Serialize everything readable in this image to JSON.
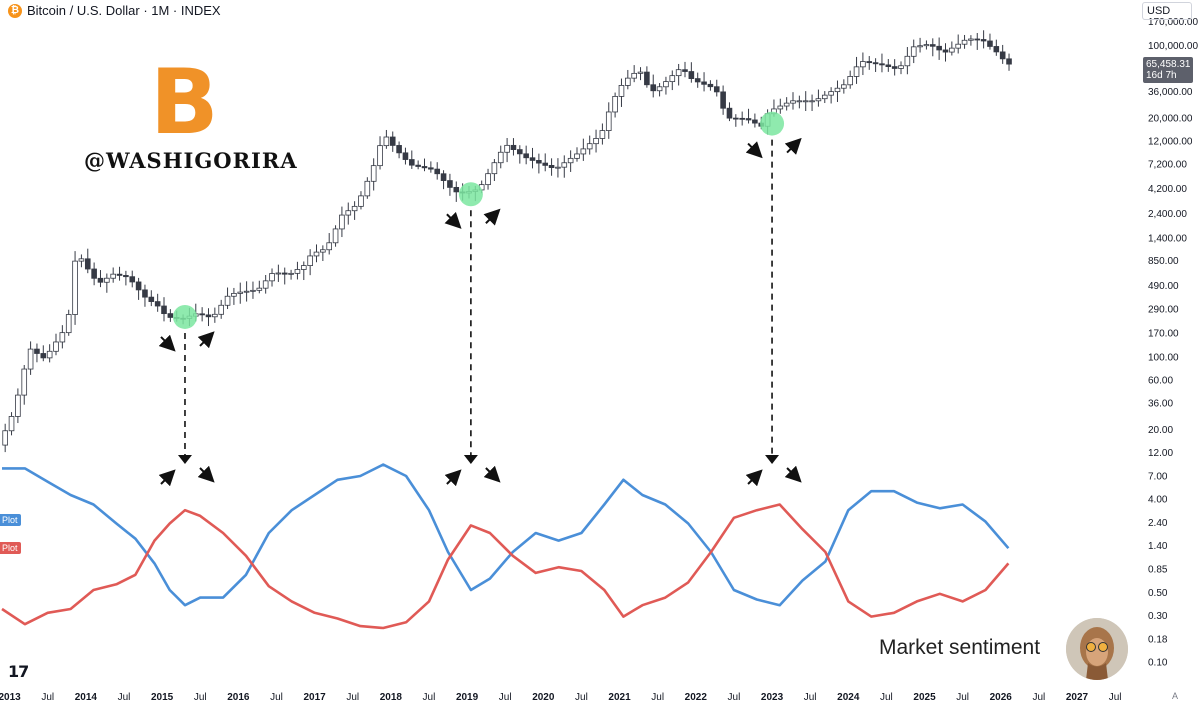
{
  "header": {
    "title": "Bitcoin / U.S. Dollar · 1M · INDEX",
    "btc_icon_glyph": "₿",
    "currency": "USD"
  },
  "price_label": {
    "value": "65,458.31",
    "countdown": "16d 7h"
  },
  "watermark": "@WASHIGORIRA",
  "logo_glyph": "B",
  "caption": "Market sentiment",
  "plot_labels": [
    {
      "text": "Plot",
      "color": "#4a8fd8"
    },
    {
      "text": "Plot",
      "color": "#e05a56"
    }
  ],
  "tv_logo": "17",
  "auto_label": "A",
  "colors": {
    "blue_line": "#4a8fd8",
    "red_line": "#e05a56",
    "green_marker": "#7be6a0",
    "candle_up": "#ffffff",
    "candle_down": "#363a45"
  },
  "chart_data": [
    {
      "type": "candlestick",
      "title": "Bitcoin / U.S. Dollar · 1M · INDEX",
      "y_scale": "log",
      "ylim": [
        14,
        180000
      ],
      "y_ticks": [
        "170,000.00",
        "100,000.00",
        "60,000.00",
        "36,000.00",
        "20,000.00",
        "12,000.00",
        "7,200.00",
        "4,200.00",
        "2,400.00",
        "1,400.00",
        "850.00",
        "490.00",
        "290.00",
        "170.00",
        "100.00",
        "60.00",
        "36.00",
        "20.00"
      ],
      "y_tick_values": [
        170000,
        100000,
        60000,
        36000,
        20000,
        12000,
        7200,
        4200,
        2400,
        1400,
        850,
        490,
        290,
        170,
        100,
        60,
        36,
        20
      ],
      "x_ticks": [
        "2013",
        "Jul",
        "2014",
        "Jul",
        "2015",
        "Jul",
        "2016",
        "Jul",
        "2017",
        "Jul",
        "2018",
        "Jul",
        "2019",
        "Jul",
        "2020",
        "Jul",
        "2021",
        "Jul",
        "2022",
        "Jul",
        "2023",
        "Jul",
        "2024",
        "Jul",
        "2025",
        "Jul",
        "2026",
        "Jul",
        "2027",
        "Jul"
      ],
      "x_tick_dates": [
        2013.0,
        2013.5,
        2014.0,
        2014.5,
        2015.0,
        2015.5,
        2016.0,
        2016.5,
        2017.0,
        2017.5,
        2018.0,
        2018.5,
        2019.0,
        2019.5,
        2020.0,
        2020.5,
        2021.0,
        2021.5,
        2022.0,
        2022.5,
        2023.0,
        2023.5,
        2024.0,
        2024.5,
        2025.0,
        2025.5,
        2026.0,
        2026.5,
        2027.0,
        2027.5
      ],
      "price_path": [
        [
          2012.9,
          14
        ],
        [
          2013.1,
          30
        ],
        [
          2013.3,
          120
        ],
        [
          2013.5,
          95
        ],
        [
          2013.8,
          200
        ],
        [
          2013.92,
          1100
        ],
        [
          2014.0,
          820
        ],
        [
          2014.2,
          500
        ],
        [
          2014.4,
          620
        ],
        [
          2014.6,
          580
        ],
        [
          2014.8,
          380
        ],
        [
          2015.0,
          300
        ],
        [
          2015.1,
          240
        ],
        [
          2015.3,
          230
        ],
        [
          2015.5,
          260
        ],
        [
          2015.7,
          235
        ],
        [
          2015.9,
          380
        ],
        [
          2016.0,
          410
        ],
        [
          2016.3,
          440
        ],
        [
          2016.5,
          650
        ],
        [
          2016.7,
          610
        ],
        [
          2016.9,
          750
        ],
        [
          2017.0,
          970
        ],
        [
          2017.2,
          1100
        ],
        [
          2017.4,
          2300
        ],
        [
          2017.6,
          2900
        ],
        [
          2017.8,
          6300
        ],
        [
          2017.95,
          14000
        ],
        [
          2018.1,
          10000
        ],
        [
          2018.3,
          7000
        ],
        [
          2018.6,
          6300
        ],
        [
          2018.85,
          4000
        ],
        [
          2018.95,
          3700
        ],
        [
          2019.2,
          4100
        ],
        [
          2019.45,
          8500
        ],
        [
          2019.55,
          11000
        ],
        [
          2019.8,
          8300
        ],
        [
          2020.0,
          7200
        ],
        [
          2020.2,
          6400
        ],
        [
          2020.5,
          9100
        ],
        [
          2020.8,
          13800
        ],
        [
          2020.95,
          29000
        ],
        [
          2021.1,
          45000
        ],
        [
          2021.3,
          58000
        ],
        [
          2021.45,
          35000
        ],
        [
          2021.6,
          41000
        ],
        [
          2021.85,
          61000
        ],
        [
          2022.0,
          46000
        ],
        [
          2022.3,
          38000
        ],
        [
          2022.45,
          19800
        ],
        [
          2022.7,
          19500
        ],
        [
          2022.9,
          16500
        ],
        [
          2023.0,
          23000
        ],
        [
          2023.3,
          29000
        ],
        [
          2023.6,
          29000
        ],
        [
          2023.8,
          35000
        ],
        [
          2024.0,
          42000
        ],
        [
          2024.2,
          70000
        ],
        [
          2024.5,
          64000
        ],
        [
          2024.7,
          58000
        ],
        [
          2024.9,
          96000
        ],
        [
          2025.1,
          102000
        ],
        [
          2025.3,
          84000
        ],
        [
          2025.6,
          115000
        ],
        [
          2025.8,
          112000
        ],
        [
          2025.95,
          90000
        ],
        [
          2026.05,
          78000
        ],
        [
          2026.1,
          65458.31
        ]
      ]
    },
    {
      "type": "line",
      "ylim": [
        0,
        1
      ],
      "series": [
        {
          "name": "Plot",
          "color": "#4a8fd8",
          "values": [
            [
              2012.9,
              0.84
            ],
            [
              2013.2,
              0.84
            ],
            [
              2013.5,
              0.77
            ],
            [
              2013.8,
              0.7
            ],
            [
              2014.1,
              0.65
            ],
            [
              2014.4,
              0.55
            ],
            [
              2014.65,
              0.47
            ],
            [
              2014.9,
              0.34
            ],
            [
              2015.1,
              0.2
            ],
            [
              2015.3,
              0.12
            ],
            [
              2015.5,
              0.16
            ],
            [
              2015.8,
              0.16
            ],
            [
              2016.1,
              0.28
            ],
            [
              2016.4,
              0.5
            ],
            [
              2016.7,
              0.62
            ],
            [
              2017.0,
              0.7
            ],
            [
              2017.3,
              0.78
            ],
            [
              2017.6,
              0.8
            ],
            [
              2017.9,
              0.86
            ],
            [
              2018.2,
              0.8
            ],
            [
              2018.5,
              0.62
            ],
            [
              2018.75,
              0.4
            ],
            [
              2019.05,
              0.2
            ],
            [
              2019.3,
              0.26
            ],
            [
              2019.6,
              0.4
            ],
            [
              2019.9,
              0.5
            ],
            [
              2020.2,
              0.46
            ],
            [
              2020.5,
              0.5
            ],
            [
              2020.8,
              0.65
            ],
            [
              2021.05,
              0.78
            ],
            [
              2021.3,
              0.7
            ],
            [
              2021.6,
              0.65
            ],
            [
              2021.9,
              0.55
            ],
            [
              2022.2,
              0.4
            ],
            [
              2022.5,
              0.2
            ],
            [
              2022.8,
              0.15
            ],
            [
              2023.1,
              0.12
            ],
            [
              2023.4,
              0.25
            ],
            [
              2023.7,
              0.35
            ],
            [
              2024.0,
              0.62
            ],
            [
              2024.3,
              0.72
            ],
            [
              2024.6,
              0.72
            ],
            [
              2024.9,
              0.66
            ],
            [
              2025.2,
              0.63
            ],
            [
              2025.5,
              0.65
            ],
            [
              2025.8,
              0.56
            ],
            [
              2026.1,
              0.42
            ]
          ]
        },
        {
          "name": "Plot",
          "color": "#e05a56",
          "values": [
            [
              2012.9,
              0.1
            ],
            [
              2013.2,
              0.02
            ],
            [
              2013.5,
              0.08
            ],
            [
              2013.8,
              0.1
            ],
            [
              2014.1,
              0.2
            ],
            [
              2014.4,
              0.23
            ],
            [
              2014.65,
              0.28
            ],
            [
              2014.9,
              0.46
            ],
            [
              2015.1,
              0.55
            ],
            [
              2015.3,
              0.62
            ],
            [
              2015.5,
              0.59
            ],
            [
              2015.8,
              0.5
            ],
            [
              2016.1,
              0.38
            ],
            [
              2016.4,
              0.22
            ],
            [
              2016.7,
              0.14
            ],
            [
              2017.0,
              0.08
            ],
            [
              2017.3,
              0.05
            ],
            [
              2017.6,
              0.01
            ],
            [
              2017.9,
              0.0
            ],
            [
              2018.2,
              0.03
            ],
            [
              2018.5,
              0.14
            ],
            [
              2018.75,
              0.36
            ],
            [
              2019.05,
              0.54
            ],
            [
              2019.3,
              0.5
            ],
            [
              2019.6,
              0.38
            ],
            [
              2019.9,
              0.29
            ],
            [
              2020.2,
              0.32
            ],
            [
              2020.5,
              0.3
            ],
            [
              2020.8,
              0.2
            ],
            [
              2021.05,
              0.06
            ],
            [
              2021.3,
              0.12
            ],
            [
              2021.6,
              0.16
            ],
            [
              2021.9,
              0.24
            ],
            [
              2022.2,
              0.4
            ],
            [
              2022.5,
              0.58
            ],
            [
              2022.8,
              0.62
            ],
            [
              2023.1,
              0.65
            ],
            [
              2023.4,
              0.52
            ],
            [
              2023.7,
              0.4
            ],
            [
              2024.0,
              0.14
            ],
            [
              2024.3,
              0.06
            ],
            [
              2024.6,
              0.08
            ],
            [
              2024.9,
              0.14
            ],
            [
              2025.2,
              0.18
            ],
            [
              2025.5,
              0.14
            ],
            [
              2025.8,
              0.2
            ],
            [
              2026.1,
              0.34
            ]
          ]
        }
      ]
    }
  ],
  "annotations": {
    "bottoms": [
      {
        "year": 2015.3,
        "price": 240
      },
      {
        "year": 2019.05,
        "price": 3650
      },
      {
        "year": 2023.0,
        "price": 17500
      }
    ]
  }
}
